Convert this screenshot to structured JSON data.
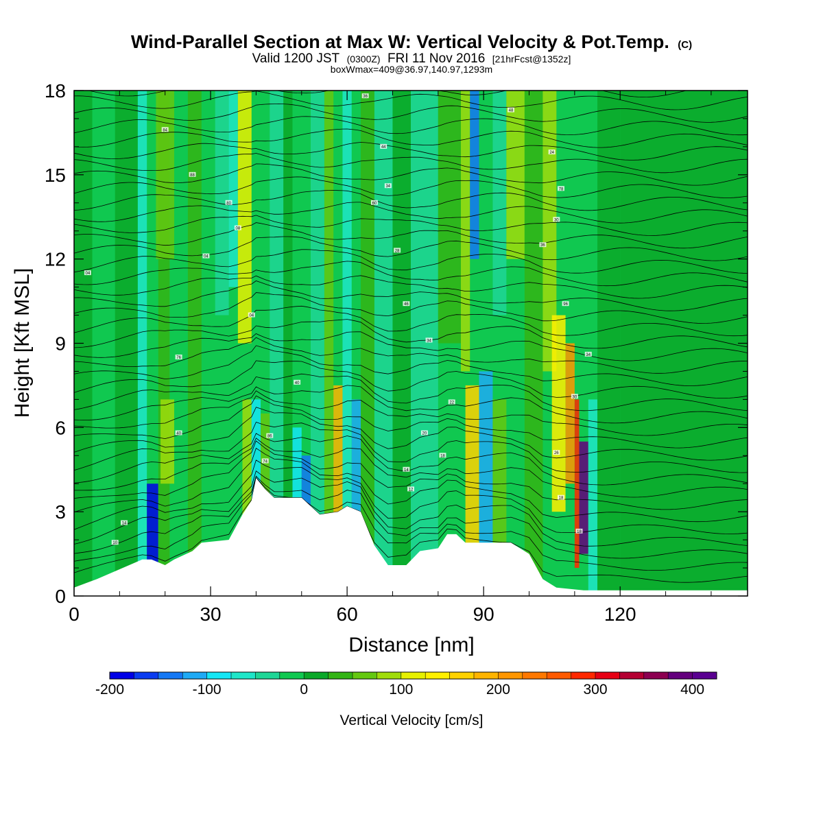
{
  "chart_data": {
    "type": "heatmap",
    "title": "Wind-Parallel Section at Max W: Vertical Velocity & Pot.Temp.",
    "title_mark": "(C)",
    "subtitle_parts": {
      "lead": "Valid 1200 JST",
      "utc": "(0300Z)",
      "date": "FRI 11 Nov 2016",
      "fcst": "[21hrFcst@1352z]"
    },
    "subtitle2": "boxWmax=409@36.97,140.97,1293m",
    "xlabel": "Distance [nm]",
    "ylabel": "Height [Kft MSL]",
    "xlim": [
      0,
      148
    ],
    "ylim": [
      0,
      18
    ],
    "x_ticks": [
      {
        "value": 0,
        "label": "0"
      },
      {
        "value": 30,
        "label": "30"
      },
      {
        "value": 60,
        "label": "60"
      },
      {
        "value": 90,
        "label": "90"
      },
      {
        "value": 120,
        "label": "120"
      }
    ],
    "y_ticks": [
      {
        "value": 0,
        "label": "0"
      },
      {
        "value": 3,
        "label": "3"
      },
      {
        "value": 6,
        "label": "6"
      },
      {
        "value": 9,
        "label": "9"
      },
      {
        "value": 12,
        "label": "12"
      },
      {
        "value": 15,
        "label": "15"
      },
      {
        "value": 18,
        "label": "18"
      }
    ],
    "colorbar": {
      "title": "Vertical Velocity [cm/s]",
      "min": -200,
      "max": 425,
      "step": 25,
      "tick_labels": [
        {
          "value": -200,
          "label": "-200"
        },
        {
          "value": -100,
          "label": "-100"
        },
        {
          "value": 0,
          "label": "0"
        },
        {
          "value": 100,
          "label": "100"
        },
        {
          "value": 200,
          "label": "200"
        },
        {
          "value": 300,
          "label": "300"
        },
        {
          "value": 400,
          "label": "400"
        }
      ],
      "colors": [
        "#0000e6",
        "#0a3cf0",
        "#1478f5",
        "#1eaaf5",
        "#14e6f5",
        "#1ee6c8",
        "#1ed696",
        "#10c850",
        "#0aa828",
        "#32b414",
        "#64c810",
        "#a0dc0a",
        "#e6f000",
        "#fff000",
        "#ffd200",
        "#ffb400",
        "#ff9600",
        "#ff7800",
        "#ff5a00",
        "#ff2800",
        "#e60014",
        "#b40032",
        "#8c0050",
        "#64007d",
        "#5a0091"
      ]
    },
    "wind_w_background": [
      {
        "x": 0,
        "w": 20
      },
      {
        "x": 37,
        "w": 120
      },
      {
        "x": 58,
        "w": 110
      },
      {
        "x": 62,
        "w": -90
      },
      {
        "x": 88,
        "w": -140
      },
      {
        "x": 94,
        "w": -90
      },
      {
        "x": 112,
        "w": 409
      },
      {
        "x": 148,
        "w": 10
      }
    ],
    "terrain": [
      {
        "x": 0,
        "z": 0.3
      },
      {
        "x": 5,
        "z": 0.6
      },
      {
        "x": 15,
        "z": 1.3
      },
      {
        "x": 17,
        "z": 1.3
      },
      {
        "x": 20,
        "z": 1.1
      },
      {
        "x": 22,
        "z": 1.3
      },
      {
        "x": 26,
        "z": 1.6
      },
      {
        "x": 28,
        "z": 1.9
      },
      {
        "x": 34,
        "z": 2.0
      },
      {
        "x": 37,
        "z": 2.9
      },
      {
        "x": 39,
        "z": 3.4
      },
      {
        "x": 40,
        "z": 4.2
      },
      {
        "x": 42,
        "z": 3.8
      },
      {
        "x": 44,
        "z": 3.5
      },
      {
        "x": 50,
        "z": 3.5
      },
      {
        "x": 52,
        "z": 3.2
      },
      {
        "x": 54,
        "z": 2.9
      },
      {
        "x": 58,
        "z": 3.0
      },
      {
        "x": 60,
        "z": 3.2
      },
      {
        "x": 63,
        "z": 3.0
      },
      {
        "x": 66,
        "z": 1.8
      },
      {
        "x": 69,
        "z": 1.1
      },
      {
        "x": 73,
        "z": 1.1
      },
      {
        "x": 76,
        "z": 1.6
      },
      {
        "x": 80,
        "z": 1.7
      },
      {
        "x": 82,
        "z": 2.2
      },
      {
        "x": 84,
        "z": 2.2
      },
      {
        "x": 86,
        "z": 1.9
      },
      {
        "x": 92,
        "z": 1.9
      },
      {
        "x": 96,
        "z": 1.9
      },
      {
        "x": 100,
        "z": 1.5
      },
      {
        "x": 103,
        "z": 0.6
      },
      {
        "x": 106,
        "z": 0.3
      },
      {
        "x": 112,
        "z": 0.2
      },
      {
        "x": 148,
        "z": 0.2
      }
    ],
    "contour_labels": [
      {
        "x": 20,
        "z": 16.6,
        "label": "84"
      },
      {
        "x": 26,
        "z": 15.0,
        "label": "88"
      },
      {
        "x": 34,
        "z": 14.0,
        "label": "80"
      },
      {
        "x": 36,
        "z": 13.1,
        "label": "08"
      },
      {
        "x": 29,
        "z": 12.1,
        "label": "04"
      },
      {
        "x": 3,
        "z": 11.5,
        "label": "04"
      },
      {
        "x": 64,
        "z": 17.8,
        "label": "36"
      },
      {
        "x": 68,
        "z": 16.0,
        "label": "44"
      },
      {
        "x": 69,
        "z": 14.6,
        "label": "34"
      },
      {
        "x": 66,
        "z": 14.0,
        "label": "60"
      },
      {
        "x": 71,
        "z": 12.3,
        "label": "28"
      },
      {
        "x": 73,
        "z": 10.4,
        "label": "46"
      },
      {
        "x": 39,
        "z": 10.0,
        "label": "04"
      },
      {
        "x": 78,
        "z": 9.1,
        "label": "34"
      },
      {
        "x": 23,
        "z": 8.5,
        "label": "76"
      },
      {
        "x": 49,
        "z": 7.6,
        "label": "40"
      },
      {
        "x": 83,
        "z": 6.9,
        "label": "22"
      },
      {
        "x": 23,
        "z": 5.8,
        "label": "40"
      },
      {
        "x": 43,
        "z": 5.7,
        "label": "86"
      },
      {
        "x": 77,
        "z": 5.8,
        "label": "20"
      },
      {
        "x": 81,
        "z": 5.0,
        "label": "18"
      },
      {
        "x": 42,
        "z": 4.8,
        "label": "74"
      },
      {
        "x": 73,
        "z": 4.5,
        "label": "14"
      },
      {
        "x": 74,
        "z": 3.8,
        "label": "12"
      },
      {
        "x": 11,
        "z": 2.6,
        "label": "14"
      },
      {
        "x": 9,
        "z": 1.9,
        "label": "10"
      },
      {
        "x": 96,
        "z": 17.3,
        "label": "48"
      },
      {
        "x": 105,
        "z": 15.8,
        "label": "24"
      },
      {
        "x": 107,
        "z": 14.5,
        "label": "78"
      },
      {
        "x": 106,
        "z": 13.4,
        "label": "30"
      },
      {
        "x": 103,
        "z": 12.5,
        "label": "36"
      },
      {
        "x": 108,
        "z": 10.4,
        "label": "96"
      },
      {
        "x": 113,
        "z": 8.6,
        "label": "34"
      },
      {
        "x": 110,
        "z": 7.1,
        "label": "30"
      },
      {
        "x": 106,
        "z": 5.1,
        "label": "26"
      },
      {
        "x": 107,
        "z": 3.5,
        "label": "18"
      },
      {
        "x": 111,
        "z": 2.3,
        "label": "18"
      }
    ]
  }
}
